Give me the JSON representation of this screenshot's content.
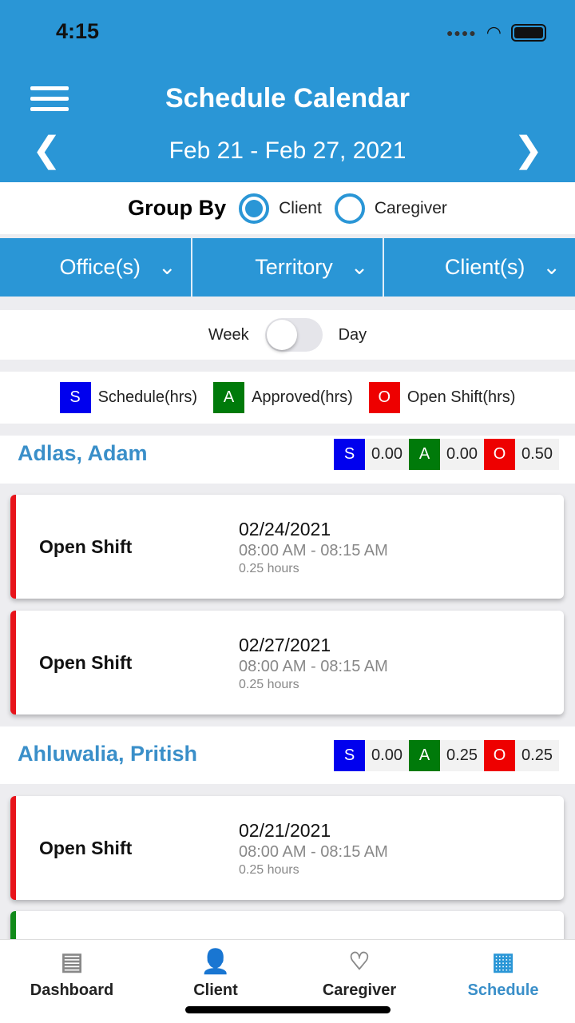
{
  "status": {
    "time": "4:15"
  },
  "header": {
    "title": "Schedule Calendar",
    "date_range": "Feb 21 - Feb 27, 2021"
  },
  "group_by": {
    "label": "Group By",
    "options": [
      "Client",
      "Caregiver"
    ],
    "selected": "Client"
  },
  "filters": [
    "Office(s)",
    "Territory",
    "Client(s)"
  ],
  "view_toggle": {
    "left": "Week",
    "right": "Day",
    "on": false
  },
  "legend": [
    {
      "key": "S",
      "label": "Schedule(hrs)",
      "color": "#0000ee"
    },
    {
      "key": "A",
      "label": "Approved(hrs)",
      "color": "#007a0a"
    },
    {
      "key": "O",
      "label": "Open Shift(hrs)",
      "color": "#ee0000"
    }
  ],
  "clients": [
    {
      "name": "Adlas, Adam",
      "S": "0.00",
      "A": "0.00",
      "O": "0.50",
      "shifts": [
        {
          "type": "Open Shift",
          "date": "02/24/2021",
          "time": "08:00 AM - 08:15 AM",
          "hours": "0.25 hours"
        },
        {
          "type": "Open Shift",
          "date": "02/27/2021",
          "time": "08:00 AM - 08:15 AM",
          "hours": "0.25 hours"
        }
      ]
    },
    {
      "name": "Ahluwalia, Pritish",
      "S": "0.00",
      "A": "0.25",
      "O": "0.25",
      "shifts": [
        {
          "type": "Open Shift",
          "date": "02/21/2021",
          "time": "08:00 AM - 08:15 AM",
          "hours": "0.25 hours"
        }
      ]
    }
  ],
  "tabs": [
    {
      "label": "Dashboard",
      "icon": "dashboard-icon"
    },
    {
      "label": "Client",
      "icon": "client-icon"
    },
    {
      "label": "Caregiver",
      "icon": "caregiver-icon"
    },
    {
      "label": "Schedule",
      "icon": "calendar-icon",
      "active": true
    }
  ],
  "colors": {
    "primary": "#2a96d6",
    "open_shift": "#e8141b",
    "approved": "#118a1a"
  }
}
